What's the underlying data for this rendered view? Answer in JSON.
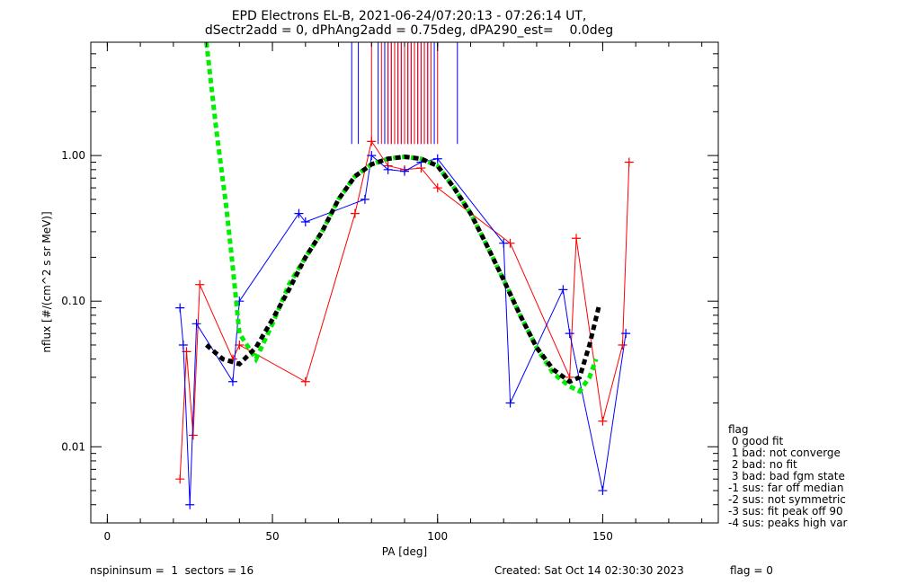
{
  "chart_data": {
    "type": "scatter",
    "title": "EPD Electrons EL-B, 2021-06-24/07:20:13 - 07:26:14 UT,",
    "subtitle": "dSectr2add = 0, dPhAng2add = 0.75deg, dPA290_est=    0.0deg",
    "xlabel": "PA [deg]",
    "ylabel": "nflux [#/(cm^2 s sr MeV)]",
    "xlim": [
      -5,
      185
    ],
    "ylim": [
      0.003,
      6.0
    ],
    "yscale": "log",
    "x_ticks": [
      "0",
      "50",
      "100",
      "150"
    ],
    "x_tick_values": [
      0,
      50,
      100,
      150
    ],
    "y_ticks": [
      "0.01",
      "0.10",
      "1.00"
    ],
    "y_tick_values": [
      0.01,
      0.1,
      1.0
    ],
    "grid": false,
    "legend_placement": "outside-right",
    "series": [
      {
        "color": "#ff0000",
        "marker": "plus",
        "lines": true,
        "x": [
          22,
          24,
          26,
          28,
          38,
          40,
          60,
          75,
          80,
          85,
          90,
          95,
          100,
          122,
          140,
          142,
          150,
          156,
          158
        ],
        "y": [
          0.006,
          0.045,
          0.012,
          0.13,
          0.04,
          0.05,
          0.028,
          0.4,
          1.25,
          0.85,
          0.8,
          0.82,
          0.6,
          0.25,
          0.03,
          0.27,
          0.015,
          0.05,
          0.9
        ]
      },
      {
        "color": "#0000ff",
        "marker": "plus",
        "lines": true,
        "x": [
          22,
          23,
          25,
          27,
          38,
          40,
          58,
          60,
          78,
          80,
          85,
          90,
          95,
          100,
          120,
          122,
          138,
          140,
          150,
          157
        ],
        "y": [
          0.09,
          0.05,
          0.004,
          0.07,
          0.028,
          0.1,
          0.4,
          0.35,
          0.5,
          1.0,
          0.8,
          0.78,
          0.9,
          0.95,
          0.25,
          0.02,
          0.12,
          0.06,
          0.005,
          0.06
        ]
      },
      {
        "color": "#00ee00",
        "style": "dashed",
        "x": [
          30,
          33,
          36,
          38,
          40,
          45,
          50,
          55,
          60,
          65,
          70,
          75,
          80,
          85,
          90,
          95,
          100,
          105,
          110,
          115,
          120,
          125,
          130,
          135,
          140,
          143,
          146,
          148
        ],
        "y": [
          6.0,
          1.5,
          0.45,
          0.17,
          0.06,
          0.04,
          0.07,
          0.13,
          0.2,
          0.3,
          0.5,
          0.72,
          0.87,
          0.95,
          0.98,
          0.95,
          0.85,
          0.6,
          0.4,
          0.24,
          0.14,
          0.08,
          0.048,
          0.032,
          0.026,
          0.024,
          0.03,
          0.04
        ]
      },
      {
        "color": "#000000",
        "style": "dashed",
        "x": [
          30,
          35,
          40,
          45,
          50,
          55,
          60,
          65,
          70,
          75,
          80,
          85,
          90,
          95,
          100,
          105,
          110,
          115,
          120,
          125,
          130,
          135,
          140,
          143,
          146,
          149
        ],
        "y": [
          0.05,
          0.04,
          0.037,
          0.048,
          0.075,
          0.12,
          0.2,
          0.3,
          0.5,
          0.72,
          0.87,
          0.95,
          0.98,
          0.95,
          0.85,
          0.6,
          0.4,
          0.24,
          0.14,
          0.08,
          0.048,
          0.034,
          0.028,
          0.03,
          0.05,
          0.095
        ]
      }
    ],
    "vertical_lines": {
      "blue_x": [
        74,
        76,
        82,
        84,
        85,
        86,
        87,
        88,
        89,
        90,
        91,
        92,
        93,
        94,
        95,
        96,
        97,
        99,
        106
      ],
      "red_x": [
        80,
        83,
        85,
        86,
        87,
        88,
        89,
        90,
        91,
        92,
        93,
        94,
        95,
        96,
        97,
        98,
        100
      ],
      "y_from": 1.2,
      "y_to": 6.0
    },
    "legend": {
      "title": "flag",
      "entries": [
        " 0 good fit",
        " 1 bad: not converge",
        " 2 bad: no fit",
        " 3 bad: bad fgm state",
        "-1 sus: far off median",
        "-2 sus: not symmetric",
        "-3 sus: fit peak off 90",
        "-4 sus: peaks high var"
      ]
    }
  },
  "footer": {
    "left": "nspininsum =  1  sectors = 16",
    "created": "Created: Sat Oct 14 02:30:30 2023",
    "flag": "flag = 0"
  }
}
